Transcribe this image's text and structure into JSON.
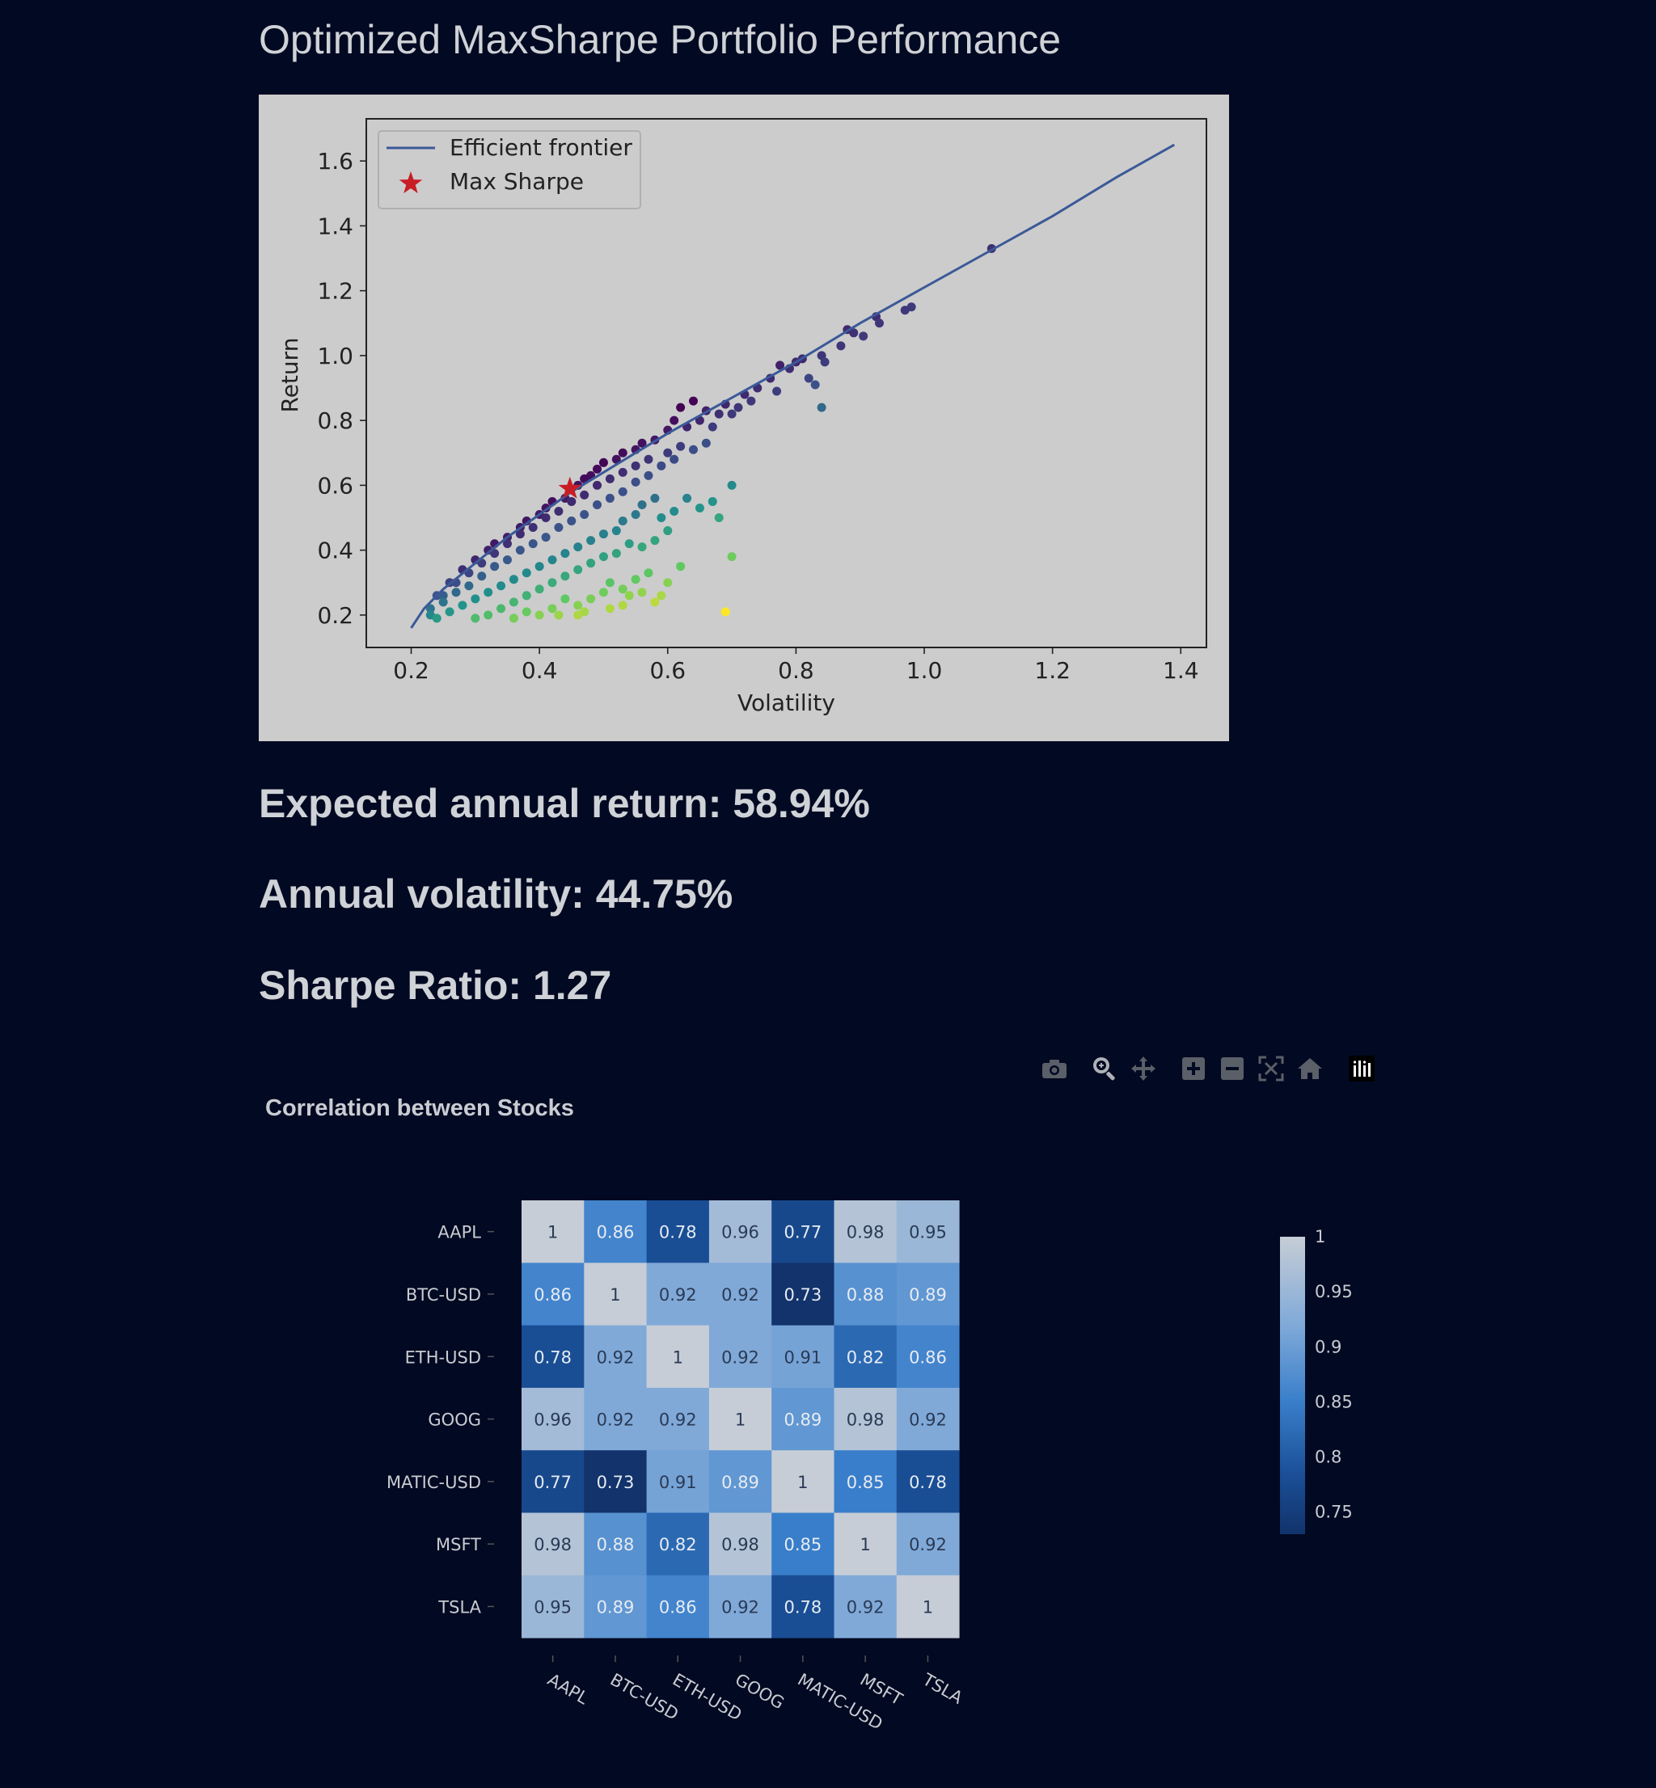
{
  "page": {
    "title": "Optimized MaxSharpe Portfolio Performance",
    "metrics": {
      "expected_return": "Expected annual return: 58.94%",
      "annual_volatility": "Annual volatility: 44.75%",
      "sharpe_ratio": "Sharpe Ratio: 1.27"
    },
    "heatmap_title": "Correlation between Stocks"
  },
  "toolbar": {
    "icons": [
      "camera-icon",
      "zoom-icon",
      "pan-icon",
      "zoom-in-icon",
      "zoom-out-icon",
      "autoscale-icon",
      "reset-axes-icon",
      "plotly-logo-icon"
    ]
  },
  "colors": {
    "background": "#020922",
    "plot_background": "#cccccc",
    "frontier_line": "#3b5998",
    "max_sharpe_star": "#c81d25",
    "text": "#c9ccd1"
  },
  "chart_data": [
    {
      "type": "scatter",
      "title": "",
      "xlabel": "Volatility",
      "ylabel": "Return",
      "xlim": [
        0.13,
        1.44
      ],
      "ylim": [
        0.1,
        1.73
      ],
      "xticks": [
        0.2,
        0.4,
        0.6,
        0.8,
        1.0,
        1.2,
        1.4
      ],
      "xtick_labels": [
        "0.2",
        "0.4",
        "0.6",
        "0.8",
        "1.0",
        "1.2",
        "1.4"
      ],
      "yticks": [
        0.2,
        0.4,
        0.6,
        0.8,
        1.0,
        1.2,
        1.4,
        1.6
      ],
      "ytick_labels": [
        "0.2",
        "0.4",
        "0.6",
        "0.8",
        "1.0",
        "1.2",
        "1.4",
        "1.6"
      ],
      "legend": {
        "position": "top-left",
        "entries": [
          "Efficient frontier",
          "Max Sharpe"
        ]
      },
      "frontier": {
        "name": "Efficient frontier",
        "x": [
          0.2,
          0.22,
          0.25,
          0.3,
          0.35,
          0.4,
          0.45,
          0.5,
          0.6,
          0.7,
          0.8,
          0.9,
          1.0,
          1.1,
          1.2,
          1.3,
          1.39
        ],
        "y": [
          0.16,
          0.22,
          0.28,
          0.36,
          0.44,
          0.51,
          0.58,
          0.64,
          0.76,
          0.87,
          0.98,
          1.1,
          1.21,
          1.32,
          1.43,
          1.55,
          1.65
        ]
      },
      "max_sharpe": {
        "name": "Max Sharpe",
        "x": 0.4475,
        "y": 0.5894
      },
      "scatter": {
        "colormap": "viridis",
        "note": "Random portfolios colored by Sharpe ratio",
        "points": [
          [
            1.105,
            1.33
          ],
          [
            0.98,
            1.15
          ],
          [
            0.97,
            1.14
          ],
          [
            0.925,
            1.12
          ],
          [
            0.93,
            1.1
          ],
          [
            0.89,
            1.07
          ],
          [
            0.88,
            1.08
          ],
          [
            0.87,
            1.03
          ],
          [
            0.905,
            1.06
          ],
          [
            0.84,
            1.0
          ],
          [
            0.845,
            0.98
          ],
          [
            0.8,
            0.98
          ],
          [
            0.81,
            0.99
          ],
          [
            0.79,
            0.96
          ],
          [
            0.775,
            0.97
          ],
          [
            0.82,
            0.93
          ],
          [
            0.83,
            0.91
          ],
          [
            0.84,
            0.84
          ],
          [
            0.76,
            0.93
          ],
          [
            0.77,
            0.89
          ],
          [
            0.74,
            0.9
          ],
          [
            0.72,
            0.88
          ],
          [
            0.73,
            0.86
          ],
          [
            0.71,
            0.84
          ],
          [
            0.69,
            0.85
          ],
          [
            0.68,
            0.82
          ],
          [
            0.66,
            0.83
          ],
          [
            0.65,
            0.8
          ],
          [
            0.63,
            0.78
          ],
          [
            0.61,
            0.8
          ],
          [
            0.6,
            0.77
          ],
          [
            0.58,
            0.74
          ],
          [
            0.56,
            0.73
          ],
          [
            0.55,
            0.71
          ],
          [
            0.53,
            0.7
          ],
          [
            0.52,
            0.68
          ],
          [
            0.5,
            0.67
          ],
          [
            0.49,
            0.65
          ],
          [
            0.48,
            0.63
          ],
          [
            0.47,
            0.62
          ],
          [
            0.46,
            0.6
          ],
          [
            0.44,
            0.56
          ],
          [
            0.42,
            0.55
          ],
          [
            0.41,
            0.53
          ],
          [
            0.4,
            0.51
          ],
          [
            0.38,
            0.49
          ],
          [
            0.37,
            0.47
          ],
          [
            0.35,
            0.44
          ],
          [
            0.33,
            0.42
          ],
          [
            0.32,
            0.4
          ],
          [
            0.3,
            0.37
          ],
          [
            0.28,
            0.34
          ],
          [
            0.26,
            0.3
          ],
          [
            0.24,
            0.26
          ],
          [
            0.62,
            0.84
          ],
          [
            0.64,
            0.86
          ],
          [
            0.7,
            0.82
          ],
          [
            0.67,
            0.78
          ],
          [
            0.62,
            0.72
          ],
          [
            0.6,
            0.7
          ],
          [
            0.57,
            0.68
          ],
          [
            0.55,
            0.66
          ],
          [
            0.53,
            0.64
          ],
          [
            0.51,
            0.62
          ],
          [
            0.49,
            0.6
          ],
          [
            0.47,
            0.57
          ],
          [
            0.45,
            0.55
          ],
          [
            0.43,
            0.52
          ],
          [
            0.41,
            0.5
          ],
          [
            0.39,
            0.47
          ],
          [
            0.37,
            0.45
          ],
          [
            0.35,
            0.42
          ],
          [
            0.33,
            0.39
          ],
          [
            0.31,
            0.36
          ],
          [
            0.29,
            0.33
          ],
          [
            0.27,
            0.3
          ],
          [
            0.25,
            0.26
          ],
          [
            0.23,
            0.22
          ],
          [
            0.66,
            0.73
          ],
          [
            0.64,
            0.71
          ],
          [
            0.61,
            0.68
          ],
          [
            0.59,
            0.66
          ],
          [
            0.57,
            0.63
          ],
          [
            0.55,
            0.61
          ],
          [
            0.53,
            0.58
          ],
          [
            0.51,
            0.56
          ],
          [
            0.49,
            0.54
          ],
          [
            0.47,
            0.51
          ],
          [
            0.45,
            0.49
          ],
          [
            0.43,
            0.47
          ],
          [
            0.41,
            0.44
          ],
          [
            0.39,
            0.42
          ],
          [
            0.37,
            0.4
          ],
          [
            0.35,
            0.37
          ],
          [
            0.33,
            0.35
          ],
          [
            0.31,
            0.32
          ],
          [
            0.29,
            0.29
          ],
          [
            0.27,
            0.27
          ],
          [
            0.25,
            0.24
          ],
          [
            0.23,
            0.2
          ],
          [
            0.7,
            0.6
          ],
          [
            0.67,
            0.55
          ],
          [
            0.65,
            0.53
          ],
          [
            0.68,
            0.5
          ],
          [
            0.63,
            0.56
          ],
          [
            0.61,
            0.52
          ],
          [
            0.59,
            0.5
          ],
          [
            0.58,
            0.56
          ],
          [
            0.56,
            0.54
          ],
          [
            0.55,
            0.51
          ],
          [
            0.53,
            0.49
          ],
          [
            0.52,
            0.46
          ],
          [
            0.5,
            0.45
          ],
          [
            0.48,
            0.43
          ],
          [
            0.46,
            0.41
          ],
          [
            0.44,
            0.39
          ],
          [
            0.42,
            0.37
          ],
          [
            0.4,
            0.35
          ],
          [
            0.38,
            0.33
          ],
          [
            0.36,
            0.31
          ],
          [
            0.34,
            0.29
          ],
          [
            0.32,
            0.27
          ],
          [
            0.3,
            0.25
          ],
          [
            0.28,
            0.23
          ],
          [
            0.26,
            0.21
          ],
          [
            0.24,
            0.19
          ],
          [
            0.6,
            0.46
          ],
          [
            0.58,
            0.43
          ],
          [
            0.56,
            0.41
          ],
          [
            0.54,
            0.42
          ],
          [
            0.52,
            0.39
          ],
          [
            0.5,
            0.38
          ],
          [
            0.48,
            0.36
          ],
          [
            0.46,
            0.34
          ],
          [
            0.44,
            0.32
          ],
          [
            0.42,
            0.3
          ],
          [
            0.4,
            0.28
          ],
          [
            0.38,
            0.26
          ],
          [
            0.36,
            0.24
          ],
          [
            0.34,
            0.22
          ],
          [
            0.32,
            0.2
          ],
          [
            0.3,
            0.19
          ],
          [
            0.7,
            0.38
          ],
          [
            0.62,
            0.35
          ],
          [
            0.6,
            0.3
          ],
          [
            0.57,
            0.33
          ],
          [
            0.55,
            0.31
          ],
          [
            0.53,
            0.28
          ],
          [
            0.51,
            0.3
          ],
          [
            0.5,
            0.27
          ],
          [
            0.48,
            0.25
          ],
          [
            0.46,
            0.23
          ],
          [
            0.44,
            0.25
          ],
          [
            0.42,
            0.22
          ],
          [
            0.4,
            0.2
          ],
          [
            0.38,
            0.21
          ],
          [
            0.36,
            0.19
          ],
          [
            0.59,
            0.26
          ],
          [
            0.58,
            0.24
          ],
          [
            0.56,
            0.27
          ],
          [
            0.54,
            0.26
          ],
          [
            0.53,
            0.23
          ],
          [
            0.51,
            0.22
          ],
          [
            0.47,
            0.21
          ],
          [
            0.46,
            0.2
          ],
          [
            0.43,
            0.2
          ],
          [
            0.69,
            0.21
          ]
        ]
      }
    },
    {
      "type": "heatmap",
      "title": "Correlation between Stocks",
      "x": [
        "AAPL",
        "BTC-USD",
        "ETH-USD",
        "GOOG",
        "MATIC-USD",
        "MSFT",
        "TSLA"
      ],
      "y": [
        "AAPL",
        "BTC-USD",
        "ETH-USD",
        "GOOG",
        "MATIC-USD",
        "MSFT",
        "TSLA"
      ],
      "values": [
        [
          1,
          0.86,
          0.78,
          0.96,
          0.77,
          0.98,
          0.95
        ],
        [
          0.86,
          1,
          0.92,
          0.92,
          0.73,
          0.88,
          0.89
        ],
        [
          0.78,
          0.92,
          1,
          0.92,
          0.91,
          0.82,
          0.86
        ],
        [
          0.96,
          0.92,
          0.92,
          1,
          0.89,
          0.98,
          0.92
        ],
        [
          0.77,
          0.73,
          0.91,
          0.89,
          1,
          0.85,
          0.78
        ],
        [
          0.98,
          0.88,
          0.82,
          0.98,
          0.85,
          1,
          0.92
        ],
        [
          0.95,
          0.89,
          0.86,
          0.92,
          0.78,
          0.92,
          1
        ]
      ],
      "value_labels": [
        [
          "1",
          "0.86",
          "0.78",
          "0.96",
          "0.77",
          "0.98",
          "0.95"
        ],
        [
          "0.86",
          "1",
          "0.92",
          "0.92",
          "0.73",
          "0.88",
          "0.89"
        ],
        [
          "0.78",
          "0.92",
          "1",
          "0.92",
          "0.91",
          "0.82",
          "0.86"
        ],
        [
          "0.96",
          "0.92",
          "0.92",
          "1",
          "0.89",
          "0.98",
          "0.92"
        ],
        [
          "0.77",
          "0.73",
          "0.91",
          "0.89",
          "1",
          "0.85",
          "0.78"
        ],
        [
          "0.98",
          "0.88",
          "0.82",
          "0.98",
          "0.85",
          "1",
          "0.92"
        ],
        [
          "0.95",
          "0.89",
          "0.86",
          "0.92",
          "0.78",
          "0.92",
          "1"
        ]
      ],
      "colorscale": {
        "min": 0.73,
        "max": 1.0,
        "stops": [
          [
            0.0,
            "#12336b"
          ],
          [
            0.2,
            "#1a4f97"
          ],
          [
            0.45,
            "#3a7fcb"
          ],
          [
            0.7,
            "#7fa9d8"
          ],
          [
            1.0,
            "#c6cdd6"
          ]
        ],
        "ticks": [
          1,
          0.95,
          0.9,
          0.85,
          0.8,
          0.75
        ],
        "tick_labels": [
          "1",
          "0.95",
          "0.9",
          "0.85",
          "0.8",
          "0.75"
        ]
      }
    }
  ]
}
